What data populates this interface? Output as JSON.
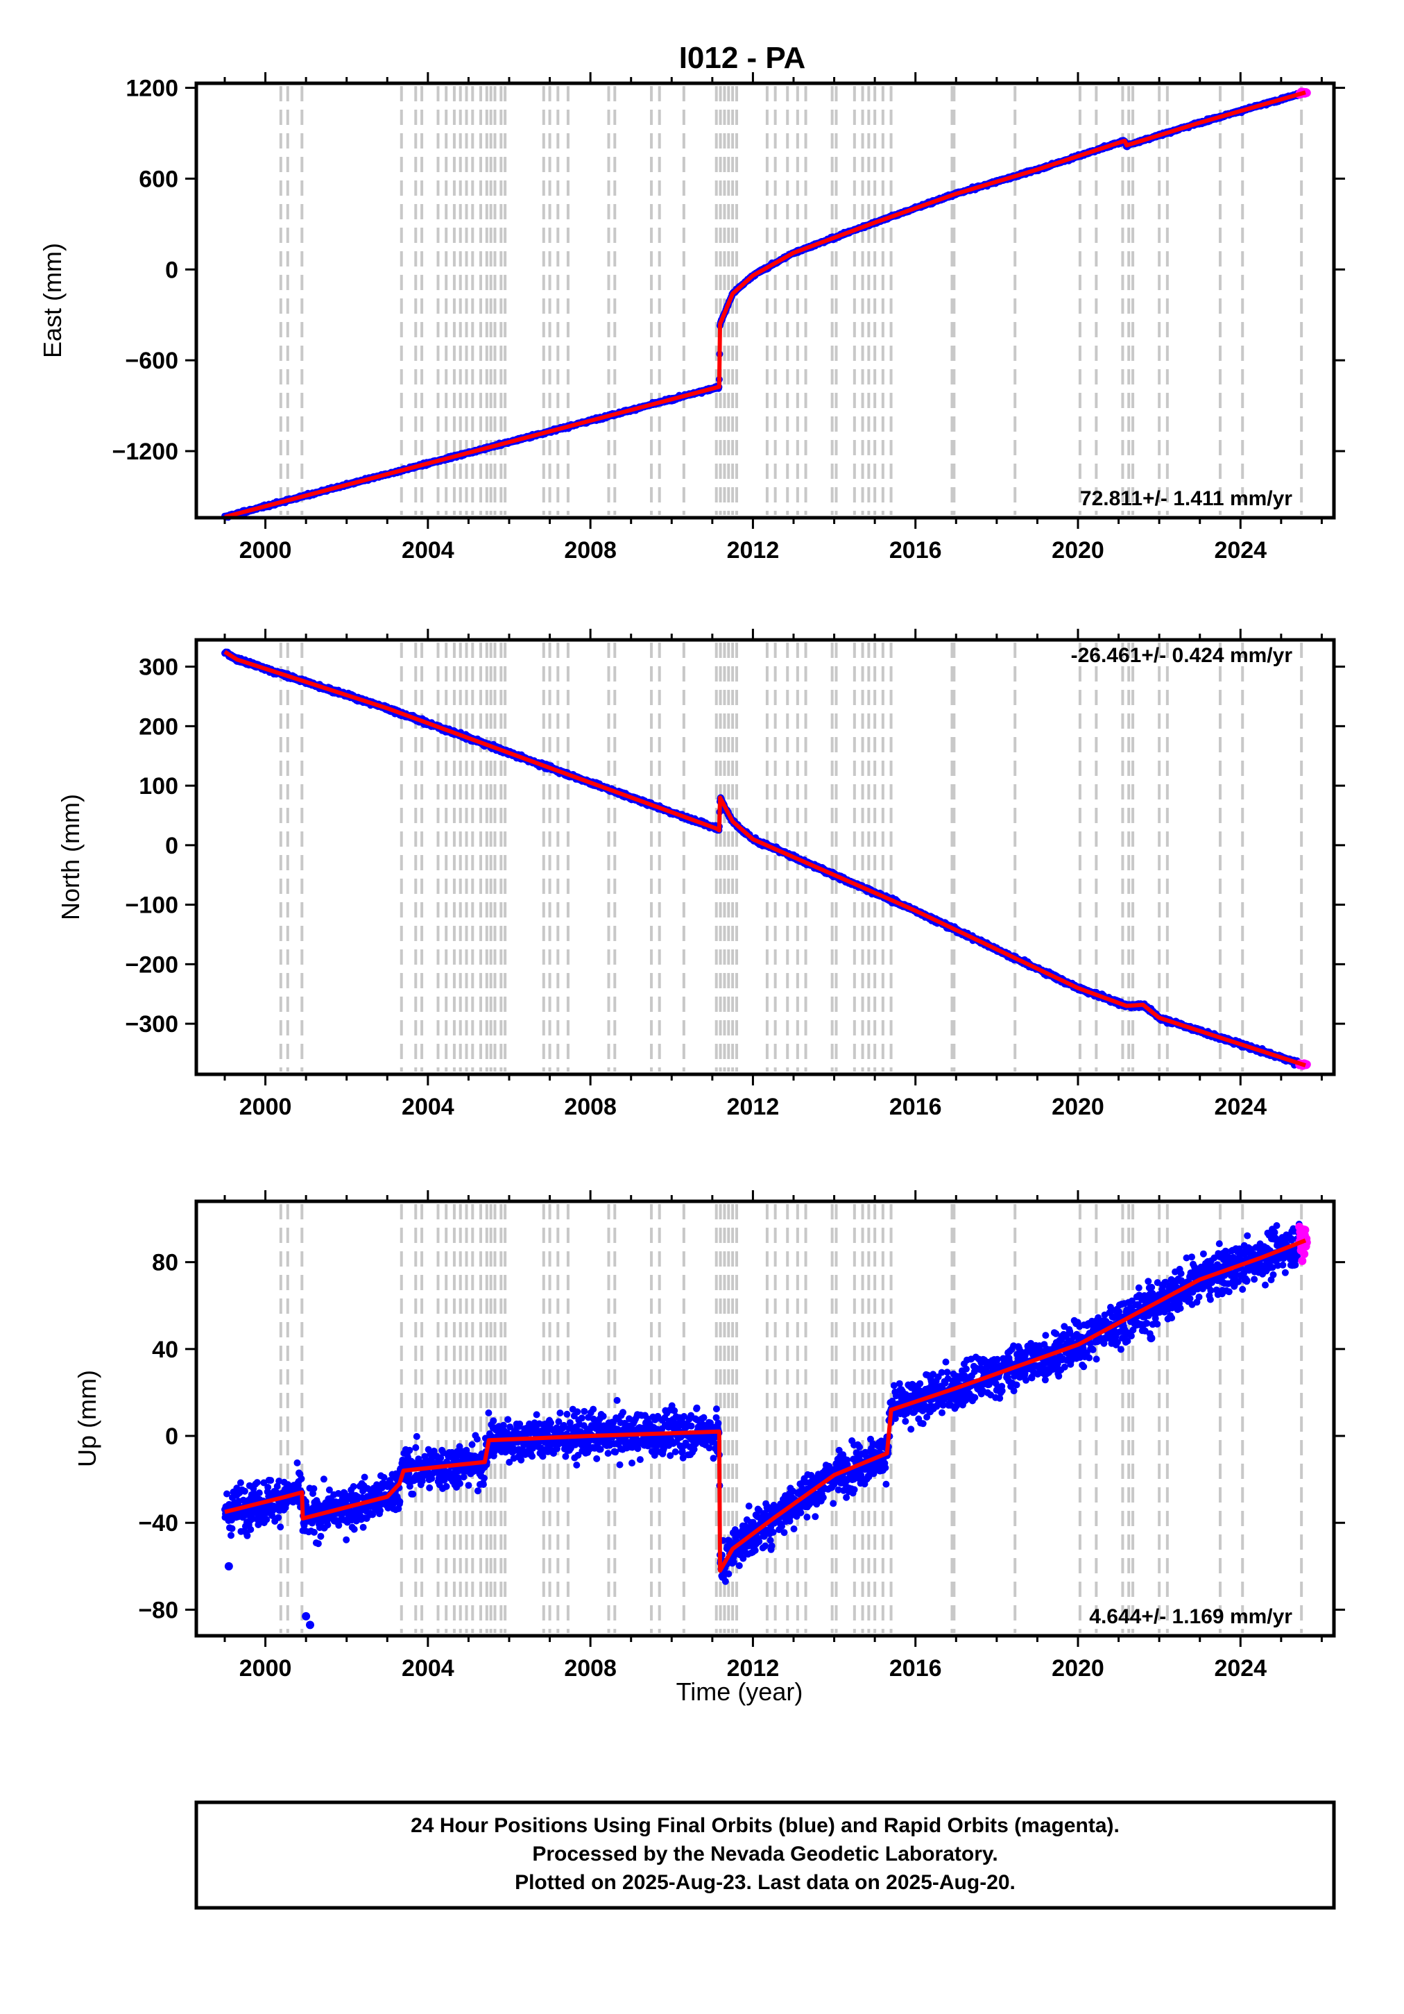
{
  "title": "I012 - PA",
  "xlabel": "Time (year)",
  "colors": {
    "final_orbits": "#0000ff",
    "rapid_orbits": "#ff00ff",
    "model": "#ff0000",
    "event_lines": "#c8c8c8",
    "frame": "#000000"
  },
  "chart_data": [
    {
      "type": "scatter",
      "component": "east",
      "ylabel": "East (mm)",
      "rate_text": "72.811+/- 1.411 mm/yr",
      "rate_position": "bottom-right",
      "xlim": [
        1998.3,
        2026.3
      ],
      "ylim": [
        -1640,
        1230
      ],
      "xticks": [
        2000,
        2004,
        2008,
        2012,
        2016,
        2020,
        2024
      ],
      "yticks": [
        -1200,
        -600,
        0,
        600,
        1200
      ],
      "ytick_labels": [
        "−1200",
        "−600",
        "0",
        "600",
        "1200"
      ],
      "trend": [
        [
          1999.0,
          -1635
        ],
        [
          2011.17,
          -775
        ],
        [
          2011.19,
          -360
        ],
        [
          2011.5,
          -160
        ],
        [
          2012.0,
          -40
        ],
        [
          2013.0,
          110
        ],
        [
          2015.0,
          310
        ],
        [
          2017.0,
          500
        ],
        [
          2019.0,
          660
        ],
        [
          2021.15,
          850
        ],
        [
          2021.2,
          820
        ],
        [
          2023.0,
          970
        ],
        [
          2025.6,
          1170
        ]
      ],
      "noise_mm": 6,
      "series": [
        {
          "name": "Final Orbits (blue)",
          "range": [
            1999.0,
            2025.45
          ]
        },
        {
          "name": "Rapid Orbits (magenta)",
          "range": [
            2025.45,
            2025.63
          ]
        }
      ]
    },
    {
      "type": "scatter",
      "component": "north",
      "ylabel": "North (mm)",
      "rate_text": "-26.461+/- 0.424 mm/yr",
      "rate_position": "top-right",
      "xlim": [
        1998.3,
        2026.3
      ],
      "ylim": [
        -385,
        345
      ],
      "xticks": [
        2000,
        2004,
        2008,
        2012,
        2016,
        2020,
        2024
      ],
      "yticks": [
        -300,
        -200,
        -100,
        0,
        100,
        200,
        300
      ],
      "ytick_labels": [
        "−300",
        "−200",
        "−100",
        "0",
        "100",
        "200",
        "300"
      ],
      "trend": [
        [
          1999.0,
          325
        ],
        [
          1999.3,
          312
        ],
        [
          2003.0,
          230
        ],
        [
          2007.0,
          130
        ],
        [
          2011.1,
          28
        ],
        [
          2011.17,
          25
        ],
        [
          2011.19,
          80
        ],
        [
          2011.5,
          40
        ],
        [
          2012.0,
          10
        ],
        [
          2016.0,
          -110
        ],
        [
          2020.0,
          -240
        ],
        [
          2021.2,
          -270
        ],
        [
          2021.6,
          -268
        ],
        [
          2022.0,
          -290
        ],
        [
          2025.6,
          -370
        ]
      ],
      "noise_mm": 2.5,
      "series": [
        {
          "name": "Final Orbits (blue)",
          "range": [
            1999.0,
            2025.45
          ]
        },
        {
          "name": "Rapid Orbits (magenta)",
          "range": [
            2025.45,
            2025.63
          ]
        }
      ]
    },
    {
      "type": "scatter",
      "component": "up",
      "ylabel": "Up (mm)",
      "rate_text": "4.644+/- 1.169 mm/yr",
      "rate_position": "bottom-right",
      "xlim": [
        1998.3,
        2026.3
      ],
      "ylim": [
        -92,
        108
      ],
      "xticks": [
        2000,
        2004,
        2008,
        2012,
        2016,
        2020,
        2024
      ],
      "yticks": [
        -80,
        -40,
        0,
        40,
        80
      ],
      "ytick_labels": [
        "−80",
        "−40",
        "0",
        "40",
        "80"
      ],
      "trend": [
        [
          1999.0,
          -35
        ],
        [
          2000.5,
          -28
        ],
        [
          2000.9,
          -26
        ],
        [
          2000.92,
          -38
        ],
        [
          2003.0,
          -28
        ],
        [
          2003.3,
          -22
        ],
        [
          2003.4,
          -16
        ],
        [
          2005.4,
          -12
        ],
        [
          2005.5,
          -2
        ],
        [
          2008.0,
          0
        ],
        [
          2011.17,
          2
        ],
        [
          2011.19,
          -62
        ],
        [
          2011.5,
          -52
        ],
        [
          2012.5,
          -38
        ],
        [
          2014.0,
          -18
        ],
        [
          2015.3,
          -8
        ],
        [
          2015.4,
          12
        ],
        [
          2017.0,
          22
        ],
        [
          2020.0,
          42
        ],
        [
          2021.3,
          55
        ],
        [
          2023.0,
          72
        ],
        [
          2024.5,
          82
        ],
        [
          2025.6,
          90
        ]
      ],
      "noise_mm": 7,
      "outliers": [
        [
          2001.0,
          -83
        ],
        [
          2001.1,
          -87
        ],
        [
          1999.1,
          -60
        ],
        [
          2021.8,
          45
        ]
      ],
      "series": [
        {
          "name": "Final Orbits (blue)",
          "range": [
            1999.0,
            2025.45
          ]
        },
        {
          "name": "Rapid Orbits (magenta)",
          "range": [
            2025.45,
            2025.63
          ]
        }
      ]
    }
  ],
  "event_lines": [
    2000.38,
    2000.55,
    2000.9,
    2003.35,
    2003.7,
    2003.85,
    2004.25,
    2004.45,
    2004.65,
    2004.8,
    2004.95,
    2005.1,
    2005.3,
    2005.45,
    2005.55,
    2005.65,
    2005.8,
    2005.9,
    2006.85,
    2007.0,
    2007.2,
    2007.45,
    2008.45,
    2008.6,
    2009.5,
    2009.7,
    2010.3,
    2011.1,
    2011.2,
    2011.3,
    2011.4,
    2011.5,
    2011.6,
    2012.35,
    2012.55,
    2012.85,
    2013.1,
    2013.3,
    2013.95,
    2014.05,
    2014.5,
    2014.7,
    2014.85,
    2015.0,
    2015.2,
    2015.4,
    2016.9,
    2016.95,
    2018.45,
    2020.05,
    2020.45,
    2021.1,
    2021.25,
    2021.35,
    2022.0,
    2022.2,
    2023.5,
    2024.05,
    2025.5
  ],
  "footer": {
    "line1": "24 Hour Positions Using Final Orbits (blue) and Rapid Orbits (magenta).",
    "line2": "Processed by the Nevada Geodetic Laboratory.",
    "line3": "Plotted on 2025-Aug-23. Last data on 2025-Aug-20."
  }
}
